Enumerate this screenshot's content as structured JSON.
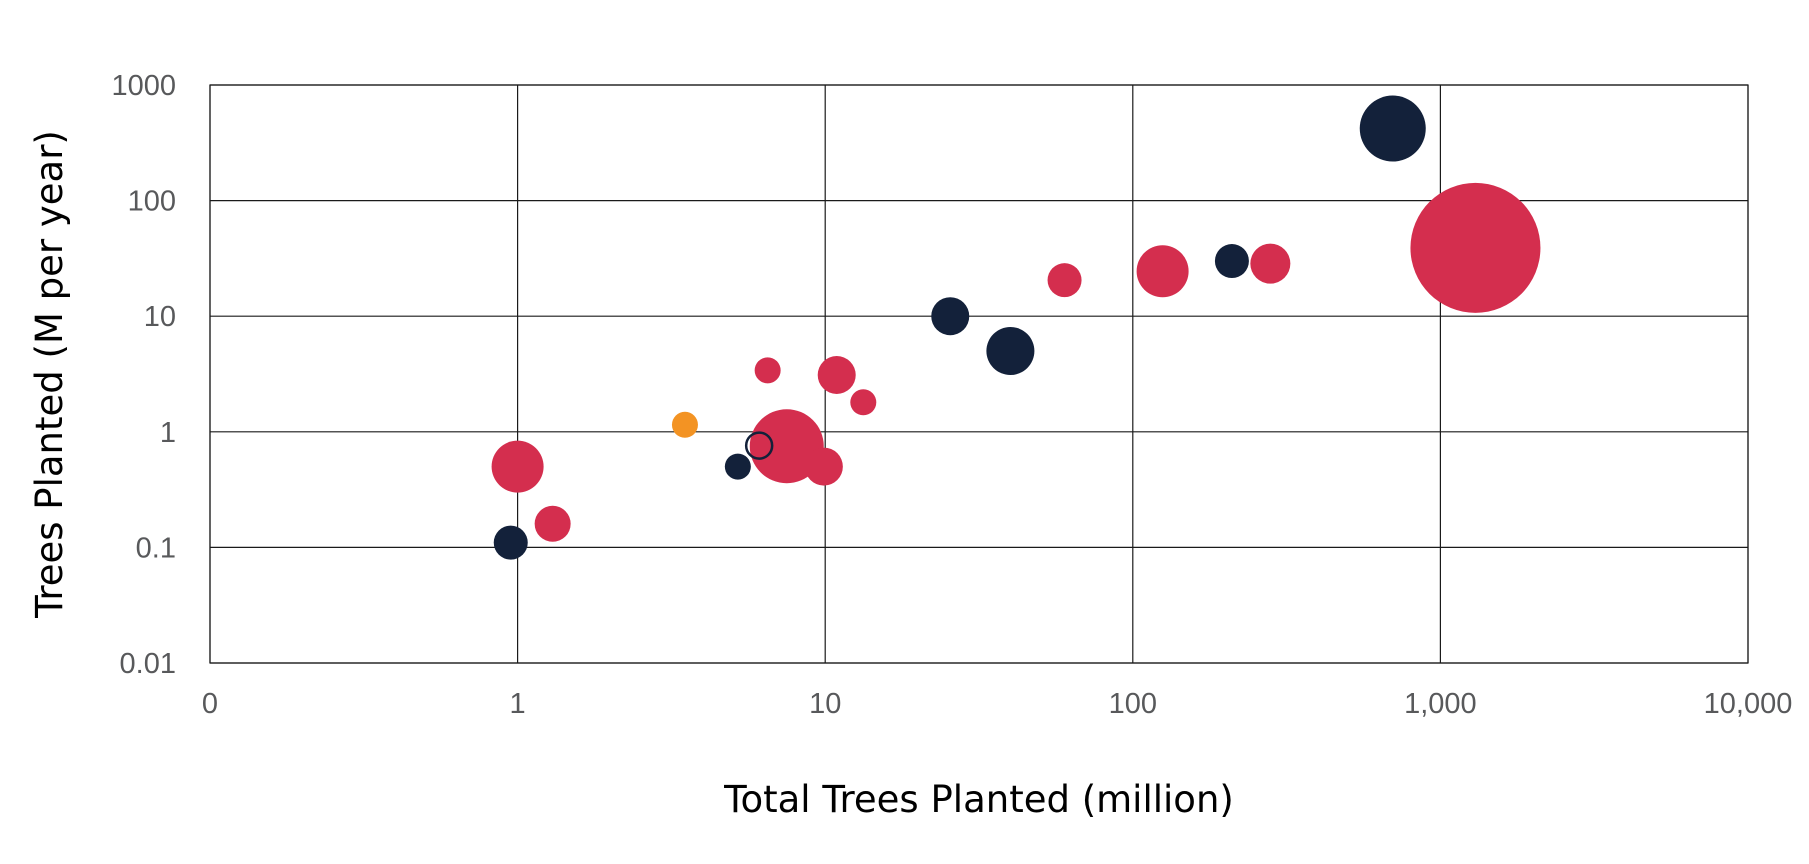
{
  "chart_data": {
    "type": "scatter",
    "title": "",
    "xlabel": "Total Trees Planted (million)",
    "ylabel": "Trees Planted (M per year)",
    "x_scale": "log",
    "y_scale": "log",
    "xlim": [
      0.1,
      10000
    ],
    "ylim": [
      0.01,
      1000
    ],
    "grid": true,
    "x_ticks": [
      {
        "value": 0.1,
        "label": "0"
      },
      {
        "value": 1,
        "label": "1"
      },
      {
        "value": 10,
        "label": "10"
      },
      {
        "value": 100,
        "label": "100"
      },
      {
        "value": 1000,
        "label": "1,000"
      },
      {
        "value": 10000,
        "label": "10,000"
      }
    ],
    "y_ticks": [
      {
        "value": 0.01,
        "label": "0.01"
      },
      {
        "value": 0.1,
        "label": "0.1"
      },
      {
        "value": 1,
        "label": "1"
      },
      {
        "value": 10,
        "label": "10"
      },
      {
        "value": 100,
        "label": "100"
      },
      {
        "value": 1000,
        "label": "1000"
      }
    ],
    "colors": {
      "crimson": "#d42e4e",
      "navy": "#13213a",
      "orange": "#f39323"
    },
    "points": [
      {
        "x": 0.95,
        "y": 0.11,
        "r": 17,
        "color": "#13213a",
        "fill": true
      },
      {
        "x": 1.0,
        "y": 0.5,
        "r": 26,
        "color": "#d42e4e",
        "fill": true
      },
      {
        "x": 1.3,
        "y": 0.16,
        "r": 18,
        "color": "#d42e4e",
        "fill": true
      },
      {
        "x": 3.5,
        "y": 1.15,
        "r": 13,
        "color": "#f39323",
        "fill": true
      },
      {
        "x": 5.2,
        "y": 0.5,
        "r": 13,
        "color": "#13213a",
        "fill": true
      },
      {
        "x": 6.5,
        "y": 3.4,
        "r": 13,
        "color": "#d42e4e",
        "fill": true
      },
      {
        "x": 7.5,
        "y": 0.75,
        "r": 37,
        "color": "#d42e4e",
        "fill": true
      },
      {
        "x": 6.1,
        "y": 0.76,
        "r": 13,
        "color": "#13213a",
        "fill": false
      },
      {
        "x": 9.9,
        "y": 0.5,
        "r": 19,
        "color": "#d42e4e",
        "fill": true
      },
      {
        "x": 10.9,
        "y": 3.1,
        "r": 19,
        "color": "#d42e4e",
        "fill": true
      },
      {
        "x": 13.3,
        "y": 1.8,
        "r": 13,
        "color": "#d42e4e",
        "fill": true
      },
      {
        "x": 25.5,
        "y": 10,
        "r": 19,
        "color": "#13213a",
        "fill": true
      },
      {
        "x": 40,
        "y": 5,
        "r": 24,
        "color": "#13213a",
        "fill": true
      },
      {
        "x": 60,
        "y": 20.5,
        "r": 17,
        "color": "#d42e4e",
        "fill": true
      },
      {
        "x": 125,
        "y": 24.5,
        "r": 26,
        "color": "#d42e4e",
        "fill": true
      },
      {
        "x": 210,
        "y": 30,
        "r": 17,
        "color": "#13213a",
        "fill": true
      },
      {
        "x": 280,
        "y": 28.5,
        "r": 20,
        "color": "#d42e4e",
        "fill": true
      },
      {
        "x": 700,
        "y": 420,
        "r": 33,
        "color": "#13213a",
        "fill": true
      },
      {
        "x": 1300,
        "y": 39,
        "r": 65,
        "color": "#d42e4e",
        "fill": true
      }
    ]
  }
}
